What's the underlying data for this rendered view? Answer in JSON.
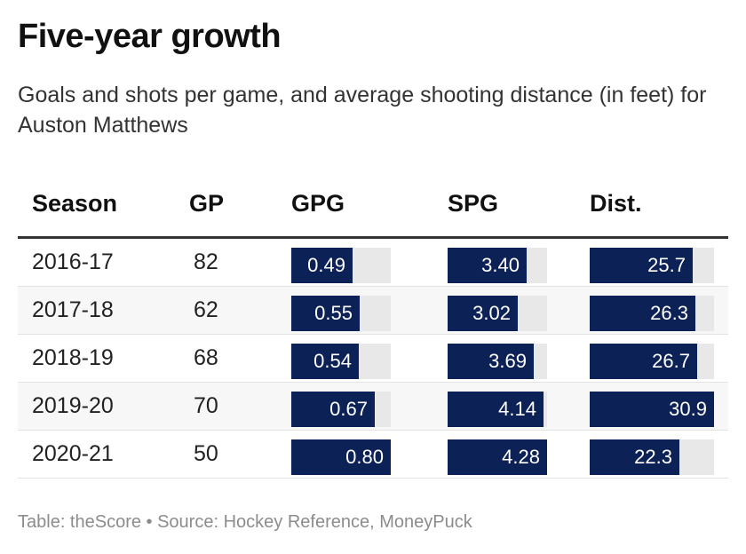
{
  "title": "Five-year growth",
  "subtitle": "Goals and shots per game, and average shooting distance (in feet) for Auston Matthews",
  "footer": "Table: theScore • Source: Hockey Reference, MoneyPuck",
  "colors": {
    "bar": "#0c2155",
    "track": "#e8e8e8"
  },
  "chart_data": {
    "type": "table",
    "columns": [
      "Season",
      "GP",
      "GPG",
      "SPG",
      "Dist."
    ],
    "bar_columns": {
      "GPG": [
        0,
        0.8
      ],
      "SPG": [
        0,
        4.28
      ],
      "Dist.": [
        0,
        30.9
      ]
    },
    "rows": [
      {
        "Season": "2016-17",
        "GP": "82",
        "GPG": 0.49,
        "SPG": 3.4,
        "Dist.": 25.7,
        "GPG_label": "0.49",
        "SPG_label": "3.40",
        "Dist_label": "25.7"
      },
      {
        "Season": "2017-18",
        "GP": "62",
        "GPG": 0.55,
        "SPG": 3.02,
        "Dist.": 26.3,
        "GPG_label": "0.55",
        "SPG_label": "3.02",
        "Dist_label": "26.3"
      },
      {
        "Season": "2018-19",
        "GP": "68",
        "GPG": 0.54,
        "SPG": 3.69,
        "Dist.": 26.7,
        "GPG_label": "0.54",
        "SPG_label": "3.69",
        "Dist_label": "26.7"
      },
      {
        "Season": "2019-20",
        "GP": "70",
        "GPG": 0.67,
        "SPG": 4.14,
        "Dist.": 30.9,
        "GPG_label": "0.67",
        "SPG_label": "4.14",
        "Dist_label": "30.9"
      },
      {
        "Season": "2020-21",
        "GP": "50",
        "GPG": 0.8,
        "SPG": 4.28,
        "Dist.": 22.3,
        "GPG_label": "0.80",
        "SPG_label": "4.28",
        "Dist_label": "22.3"
      }
    ]
  }
}
